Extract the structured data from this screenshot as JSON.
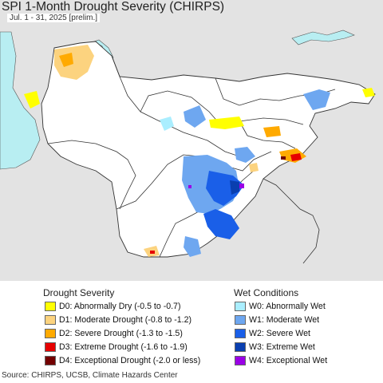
{
  "title": "SPI 1-Month Drought Severity (CHIRPS)",
  "subtitle": "Jul. 1 - 31, 2025 [prelim.]",
  "colors": {
    "water": "#b8eef2",
    "land_focus": "#ffffff",
    "land_outside": "#e3e3e3",
    "border": "#333333"
  },
  "legend": {
    "drought": {
      "title": "Drought Severity",
      "items": [
        {
          "label": "D0: Abnormally Dry (-0.5 to -0.7)",
          "color": "#ffff00"
        },
        {
          "label": "D1: Moderate Drought (-0.8 to -1.2)",
          "color": "#fcd37f"
        },
        {
          "label": "D2: Severe Drought (-1.3 to -1.5)",
          "color": "#ffaa00"
        },
        {
          "label": "D3: Extreme Drought (-1.6 to -1.9)",
          "color": "#e60000"
        },
        {
          "label": "D4: Exceptional Drought (-2.0 or less)",
          "color": "#730000"
        }
      ]
    },
    "wet": {
      "title": "Wet Conditions",
      "items": [
        {
          "label": "W0: Abnormally Wet",
          "color": "#aaeeff"
        },
        {
          "label": "W1: Moderate Wet",
          "color": "#6ea7f0"
        },
        {
          "label": "W2: Severe Wet",
          "color": "#1a5fe8"
        },
        {
          "label": "W3: Extreme Wet",
          "color": "#0a3fb0"
        },
        {
          "label": "W4: Exceptional Wet",
          "color": "#9a00e6"
        }
      ]
    }
  },
  "source": "Source: CHIRPS, UCSB, Climate Hazards Center"
}
